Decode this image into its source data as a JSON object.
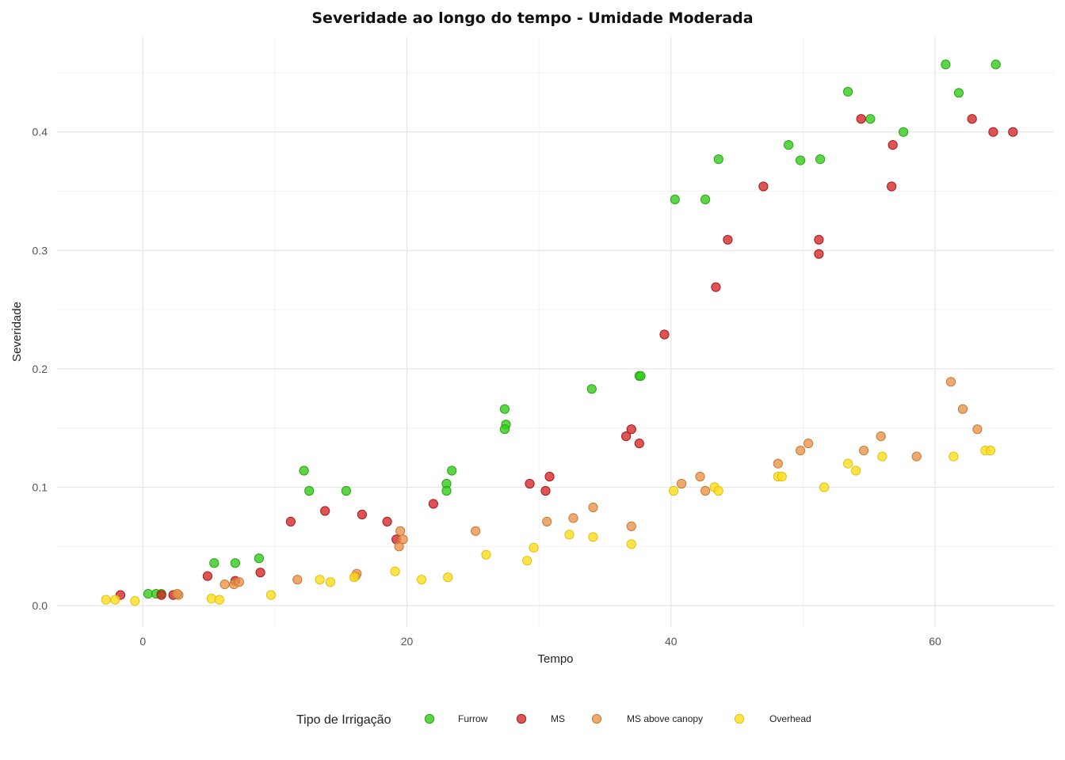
{
  "chart_data": {
    "type": "scatter",
    "title": "Severidade ao longo do tempo - Umidade Moderada",
    "xlabel": "Tempo",
    "ylabel": "Severidade",
    "xlim": [
      -6.5,
      69
    ],
    "ylim": [
      -0.018,
      0.48
    ],
    "x_ticks": [
      0,
      20,
      40,
      60
    ],
    "y_ticks": [
      0.0,
      0.1,
      0.2,
      0.3,
      0.4
    ],
    "x_tick_labels": [
      "0",
      "20",
      "40",
      "60"
    ],
    "y_tick_labels": [
      "0.0",
      "0.1",
      "0.2",
      "0.3",
      "0.4"
    ],
    "grid": true,
    "legend": {
      "title": "Tipo de Irrigação",
      "position": "bottom"
    },
    "series": [
      {
        "name": "Furrow",
        "color": "#33cc1a",
        "edge": "#2aa314",
        "points": [
          [
            0.4,
            0.01
          ],
          [
            1.0,
            0.01
          ],
          [
            1.4,
            0.01
          ],
          [
            5.4,
            0.036
          ],
          [
            7.0,
            0.036
          ],
          [
            8.8,
            0.04
          ],
          [
            12.2,
            0.114
          ],
          [
            12.6,
            0.097
          ],
          [
            15.4,
            0.097
          ],
          [
            23.0,
            0.103
          ],
          [
            23.0,
            0.097
          ],
          [
            23.4,
            0.114
          ],
          [
            27.4,
            0.166
          ],
          [
            27.5,
            0.153
          ],
          [
            27.4,
            0.149
          ],
          [
            34.0,
            0.183
          ],
          [
            37.6,
            0.194
          ],
          [
            37.7,
            0.194
          ],
          [
            40.3,
            0.343
          ],
          [
            42.6,
            0.343
          ],
          [
            43.6,
            0.377
          ],
          [
            48.9,
            0.389
          ],
          [
            49.8,
            0.376
          ],
          [
            51.3,
            0.377
          ],
          [
            53.4,
            0.434
          ],
          [
            55.1,
            0.411
          ],
          [
            57.6,
            0.4
          ],
          [
            60.8,
            0.457
          ],
          [
            61.8,
            0.433
          ],
          [
            64.6,
            0.457
          ]
        ]
      },
      {
        "name": "MS",
        "color": "#d62828",
        "edge": "#a51c1c",
        "points": [
          [
            -1.7,
            0.009
          ],
          [
            1.4,
            0.009
          ],
          [
            2.3,
            0.009
          ],
          [
            4.9,
            0.025
          ],
          [
            7.0,
            0.021
          ],
          [
            8.9,
            0.028
          ],
          [
            11.2,
            0.071
          ],
          [
            13.8,
            0.08
          ],
          [
            16.6,
            0.077
          ],
          [
            18.5,
            0.071
          ],
          [
            19.2,
            0.056
          ],
          [
            22.0,
            0.086
          ],
          [
            29.3,
            0.103
          ],
          [
            30.5,
            0.097
          ],
          [
            30.8,
            0.109
          ],
          [
            36.6,
            0.143
          ],
          [
            37.0,
            0.149
          ],
          [
            37.6,
            0.137
          ],
          [
            39.5,
            0.229
          ],
          [
            43.4,
            0.269
          ],
          [
            44.3,
            0.309
          ],
          [
            47.0,
            0.354
          ],
          [
            51.2,
            0.309
          ],
          [
            51.2,
            0.297
          ],
          [
            54.4,
            0.411
          ],
          [
            56.8,
            0.389
          ],
          [
            56.7,
            0.354
          ],
          [
            62.8,
            0.411
          ],
          [
            64.4,
            0.4
          ],
          [
            65.9,
            0.4
          ]
        ]
      },
      {
        "name": "MS above canopy",
        "color": "#e8944a",
        "edge": "#c77a35",
        "points": [
          [
            2.7,
            0.009
          ],
          [
            2.6,
            0.01
          ],
          [
            6.2,
            0.018
          ],
          [
            6.9,
            0.018
          ],
          [
            7.3,
            0.02
          ],
          [
            11.7,
            0.022
          ],
          [
            16.1,
            0.025
          ],
          [
            16.2,
            0.027
          ],
          [
            19.4,
            0.05
          ],
          [
            19.5,
            0.063
          ],
          [
            19.7,
            0.056
          ],
          [
            25.2,
            0.063
          ],
          [
            30.6,
            0.071
          ],
          [
            32.6,
            0.074
          ],
          [
            34.1,
            0.083
          ],
          [
            37.0,
            0.067
          ],
          [
            40.8,
            0.103
          ],
          [
            42.2,
            0.109
          ],
          [
            42.6,
            0.097
          ],
          [
            48.1,
            0.12
          ],
          [
            49.8,
            0.131
          ],
          [
            50.4,
            0.137
          ],
          [
            54.6,
            0.131
          ],
          [
            55.9,
            0.143
          ],
          [
            58.6,
            0.126
          ],
          [
            61.2,
            0.189
          ],
          [
            62.1,
            0.166
          ],
          [
            63.2,
            0.149
          ]
        ]
      },
      {
        "name": "Overhead",
        "color": "#ffdd1a",
        "edge": "#e0c010",
        "points": [
          [
            -2.8,
            0.005
          ],
          [
            -2.1,
            0.005
          ],
          [
            -0.6,
            0.004
          ],
          [
            5.2,
            0.006
          ],
          [
            5.8,
            0.005
          ],
          [
            9.7,
            0.009
          ],
          [
            13.4,
            0.022
          ],
          [
            14.2,
            0.02
          ],
          [
            16.0,
            0.024
          ],
          [
            19.1,
            0.029
          ],
          [
            21.1,
            0.022
          ],
          [
            23.1,
            0.024
          ],
          [
            26.0,
            0.043
          ],
          [
            29.1,
            0.038
          ],
          [
            29.6,
            0.049
          ],
          [
            32.3,
            0.06
          ],
          [
            34.1,
            0.058
          ],
          [
            37.0,
            0.052
          ],
          [
            40.2,
            0.097
          ],
          [
            43.3,
            0.1
          ],
          [
            43.6,
            0.097
          ],
          [
            48.1,
            0.109
          ],
          [
            48.4,
            0.109
          ],
          [
            51.6,
            0.1
          ],
          [
            53.4,
            0.12
          ],
          [
            54.0,
            0.114
          ],
          [
            56.0,
            0.126
          ],
          [
            61.4,
            0.126
          ],
          [
            63.8,
            0.131
          ],
          [
            64.2,
            0.131
          ]
        ]
      }
    ]
  }
}
